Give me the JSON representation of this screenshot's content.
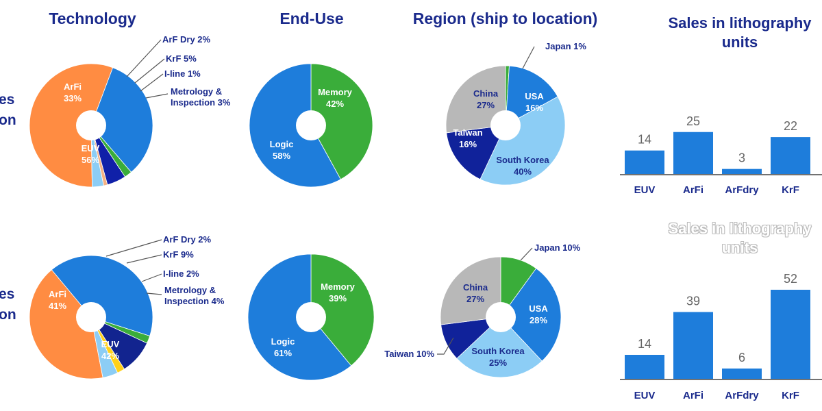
{
  "headers": {
    "technology": "Technology",
    "end_use": "End-Use",
    "region": "Region (ship to location)",
    "sales_top": [
      "Sales in lithography",
      "units"
    ],
    "sales_bottom": [
      "Sales in lithography",
      "units"
    ]
  },
  "row_labels": {
    "top": [
      "es",
      "on"
    ],
    "bottom": [
      "es",
      "on"
    ]
  },
  "colors": {
    "EUV": "#ff8c42",
    "ArFi": "#1e7ddb",
    "ArF Dry": "#3aad3a",
    "KrF": "#1020a8",
    "KrF_bottom": "#12248f",
    "I-line": "#f4b183",
    "I-line_bottom": "#ffd11a",
    "Metrology": "#8ccdf5",
    "Logic": "#1e7ddb",
    "Memory": "#3aad3a",
    "China": "#b8b8b8",
    "USA": "#1e7ddb",
    "South Korea": "#8ccdf5",
    "Taiwan": "#10229a",
    "Japan": "#3aad3a",
    "bar": "#1e7ddb",
    "axis": "#444444",
    "title_blue": "#1a2a8c"
  },
  "chart_data": [
    {
      "type": "pie",
      "id": "tech-top",
      "title": "Technology",
      "slices": [
        {
          "name": "EUV",
          "value": 56,
          "label": "EUV",
          "pct": "56%"
        },
        {
          "name": "ArFi",
          "value": 33,
          "label": "ArFi",
          "pct": "33%"
        },
        {
          "name": "ArF Dry",
          "value": 2,
          "label": "ArF Dry 2%"
        },
        {
          "name": "KrF",
          "value": 5,
          "label": "KrF 5%"
        },
        {
          "name": "I-line",
          "value": 1,
          "label": "I-line 1%"
        },
        {
          "name": "Metrology",
          "value": 3,
          "label": "Metrology & Inspection 3%",
          "label_lines": [
            "Metrology &",
            "Inspection 3%"
          ]
        }
      ]
    },
    {
      "type": "pie",
      "id": "enduse-top",
      "title": "End-Use",
      "slices": [
        {
          "name": "Memory",
          "value": 42,
          "label": "Memory",
          "pct": "42%"
        },
        {
          "name": "Logic",
          "value": 58,
          "label": "Logic",
          "pct": "58%"
        }
      ]
    },
    {
      "type": "pie",
      "id": "region-top",
      "title": "Region (ship to location)",
      "slices": [
        {
          "name": "Japan",
          "value": 1,
          "label": "Japan 1%"
        },
        {
          "name": "USA",
          "value": 16,
          "label": "USA",
          "pct": "16%"
        },
        {
          "name": "South Korea",
          "value": 40,
          "label": "South Korea",
          "pct": "40%"
        },
        {
          "name": "Taiwan",
          "value": 16,
          "label": "Taiwan",
          "pct": "16%"
        },
        {
          "name": "China",
          "value": 27,
          "label": "China",
          "pct": "27%"
        }
      ]
    },
    {
      "type": "bar",
      "id": "sales-top",
      "title": "Sales in lithography units",
      "categories": [
        "EUV",
        "ArFi",
        "ArFdry",
        "KrF"
      ],
      "values": [
        14,
        25,
        3,
        22
      ]
    },
    {
      "type": "pie",
      "id": "tech-bottom",
      "slices": [
        {
          "name": "EUV",
          "value": 42,
          "label": "EUV",
          "pct": "42%"
        },
        {
          "name": "ArFi",
          "value": 41,
          "label": "ArFi",
          "pct": "41%"
        },
        {
          "name": "ArF Dry",
          "value": 2,
          "label": "ArF Dry 2%"
        },
        {
          "name": "KrF",
          "value": 9,
          "label": "KrF 9%"
        },
        {
          "name": "I-line",
          "value": 2,
          "label": "I-line 2%"
        },
        {
          "name": "Metrology",
          "value": 4,
          "label": "Metrology & Inspection 4%",
          "label_lines": [
            "Metrology &",
            "Inspection 4%"
          ]
        }
      ]
    },
    {
      "type": "pie",
      "id": "enduse-bottom",
      "slices": [
        {
          "name": "Memory",
          "value": 39,
          "label": "Memory",
          "pct": "39%"
        },
        {
          "name": "Logic",
          "value": 61,
          "label": "Logic",
          "pct": "61%"
        }
      ]
    },
    {
      "type": "pie",
      "id": "region-bottom",
      "slices": [
        {
          "name": "Japan",
          "value": 10,
          "label": "Japan 10%"
        },
        {
          "name": "USA",
          "value": 28,
          "label": "USA",
          "pct": "28%"
        },
        {
          "name": "South Korea",
          "value": 25,
          "label": "South Korea",
          "pct": "25%"
        },
        {
          "name": "Taiwan",
          "value": 10,
          "label": "Taiwan 10%"
        },
        {
          "name": "China",
          "value": 27,
          "label": "China",
          "pct": "27%"
        }
      ]
    },
    {
      "type": "bar",
      "id": "sales-bottom",
      "title": "Sales in lithography units",
      "categories": [
        "EUV",
        "ArFi",
        "ArFdry",
        "KrF"
      ],
      "values": [
        14,
        39,
        6,
        52
      ]
    }
  ]
}
